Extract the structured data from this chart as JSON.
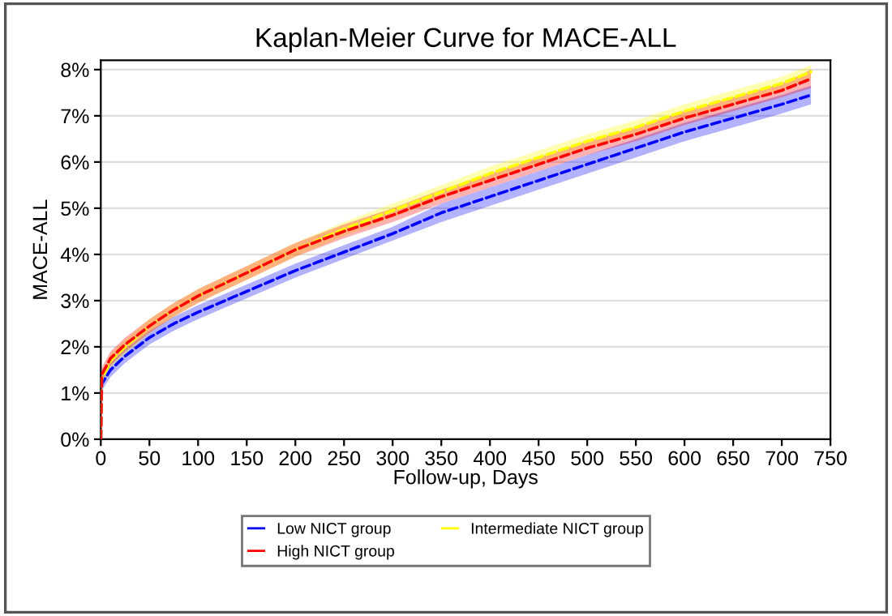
{
  "chart_data": {
    "type": "line",
    "title": "Kaplan-Meier Curve for MACE-ALL",
    "xlabel": "Follow-up, Days",
    "ylabel": "MACE-ALL",
    "x": [
      0,
      1,
      10,
      25,
      50,
      75,
      100,
      150,
      200,
      250,
      300,
      350,
      400,
      450,
      500,
      550,
      600,
      650,
      700,
      730
    ],
    "series": [
      {
        "name": "Low NICT group",
        "color": "#0000ff",
        "values": [
          0,
          1.2,
          1.5,
          1.8,
          2.2,
          2.5,
          2.75,
          3.2,
          3.65,
          4.05,
          4.45,
          4.9,
          5.25,
          5.6,
          5.95,
          6.3,
          6.65,
          6.95,
          7.25,
          7.45
        ],
        "lower": [
          0,
          1.05,
          1.35,
          1.65,
          2.05,
          2.35,
          2.6,
          3.05,
          3.5,
          3.9,
          4.3,
          4.7,
          5.05,
          5.4,
          5.75,
          6.1,
          6.45,
          6.75,
          7.05,
          7.25
        ],
        "upper": [
          0,
          1.35,
          1.65,
          1.95,
          2.35,
          2.65,
          2.9,
          3.35,
          3.8,
          4.2,
          4.6,
          5.1,
          5.45,
          5.8,
          6.15,
          6.5,
          6.85,
          7.15,
          7.45,
          7.65
        ]
      },
      {
        "name": "Intermediate NICT group",
        "color": "#ffff00",
        "values": [
          0,
          1.3,
          1.7,
          2.0,
          2.45,
          2.8,
          3.1,
          3.6,
          4.1,
          4.55,
          4.95,
          5.35,
          5.75,
          6.1,
          6.45,
          6.75,
          7.1,
          7.4,
          7.7,
          7.95
        ],
        "lower": [
          0,
          1.15,
          1.55,
          1.85,
          2.3,
          2.65,
          2.95,
          3.45,
          3.95,
          4.4,
          4.8,
          5.2,
          5.6,
          5.95,
          6.3,
          6.6,
          6.95,
          7.25,
          7.55,
          7.8
        ],
        "upper": [
          0,
          1.45,
          1.85,
          2.15,
          2.6,
          2.95,
          3.25,
          3.75,
          4.25,
          4.7,
          5.1,
          5.5,
          5.9,
          6.25,
          6.6,
          6.9,
          7.25,
          7.55,
          7.85,
          8.1
        ]
      },
      {
        "name": "High NICT group",
        "color": "#ff0000",
        "values": [
          0,
          1.4,
          1.75,
          2.05,
          2.45,
          2.8,
          3.1,
          3.6,
          4.1,
          4.5,
          4.85,
          5.25,
          5.6,
          5.95,
          6.3,
          6.6,
          6.95,
          7.25,
          7.55,
          7.8
        ],
        "lower": [
          0,
          1.25,
          1.6,
          1.9,
          2.3,
          2.65,
          2.95,
          3.45,
          3.95,
          4.35,
          4.7,
          5.1,
          5.45,
          5.8,
          6.15,
          6.45,
          6.8,
          7.1,
          7.4,
          7.6
        ],
        "upper": [
          0,
          1.55,
          1.9,
          2.2,
          2.6,
          2.95,
          3.25,
          3.75,
          4.25,
          4.65,
          5.0,
          5.4,
          5.75,
          6.1,
          6.45,
          6.75,
          7.1,
          7.4,
          7.7,
          8.0
        ]
      }
    ],
    "xlim": [
      0,
      750
    ],
    "xticks": [
      0,
      50,
      100,
      150,
      200,
      250,
      300,
      350,
      400,
      450,
      500,
      550,
      600,
      650,
      700,
      750
    ],
    "ylim": [
      0,
      8.2
    ],
    "yticks": [
      {
        "value": 0,
        "label": "0%"
      },
      {
        "value": 1,
        "label": "1%"
      },
      {
        "value": 2,
        "label": "2%"
      },
      {
        "value": 3,
        "label": "3%"
      },
      {
        "value": 4,
        "label": "4%"
      },
      {
        "value": 5,
        "label": "5%"
      },
      {
        "value": 6,
        "label": "6%"
      },
      {
        "value": 7,
        "label": "7%"
      },
      {
        "value": 8,
        "label": "8%"
      }
    ],
    "grid": "y",
    "legend": "bottom",
    "line_style": "dashed",
    "marker": "none"
  }
}
